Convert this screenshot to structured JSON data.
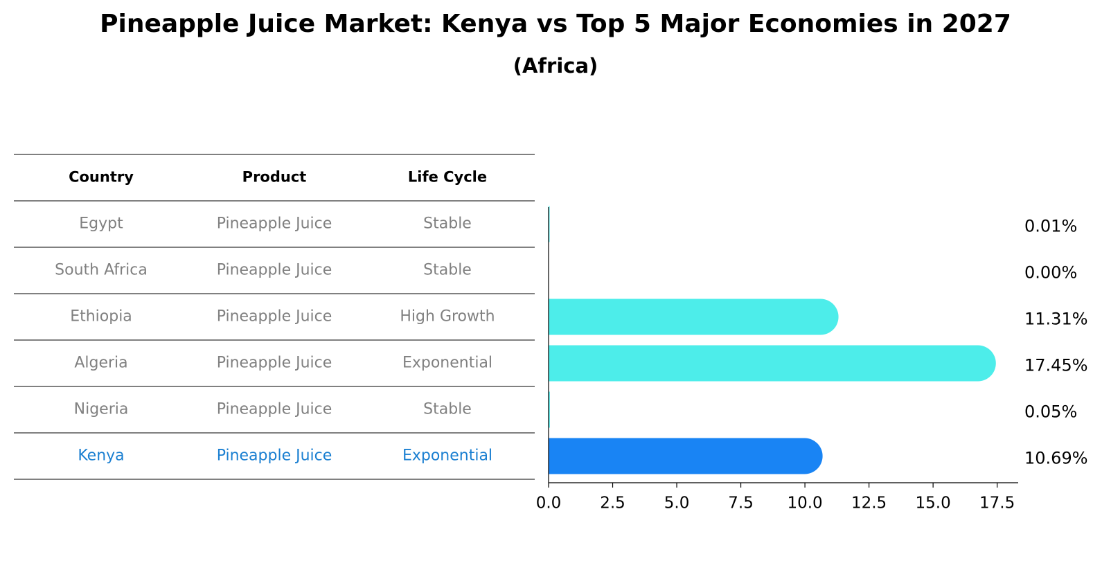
{
  "title": "Pineapple Juice Market: Kenya vs Top 5 Major Economies in 2027",
  "subtitle": "(Africa)",
  "colors": {
    "bar": "#4dedea",
    "highlight": "#1984f4",
    "muted_text": "#808080",
    "highlight_text": "#1a7fd1",
    "header_text": "#000000"
  },
  "table": {
    "columns": [
      "Country",
      "Product",
      "Life Cycle"
    ],
    "rows": [
      {
        "country": "Egypt",
        "product": "Pineapple Juice",
        "life_cycle": "Stable",
        "highlight": false
      },
      {
        "country": "South Africa",
        "product": "Pineapple Juice",
        "life_cycle": "Stable",
        "highlight": false
      },
      {
        "country": "Ethiopia",
        "product": "Pineapple Juice",
        "life_cycle": "High Growth",
        "highlight": false
      },
      {
        "country": "Algeria",
        "product": "Pineapple Juice",
        "life_cycle": "Exponential",
        "highlight": false
      },
      {
        "country": "Nigeria",
        "product": "Pineapple Juice",
        "life_cycle": "Stable",
        "highlight": false
      },
      {
        "country": "Kenya",
        "product": "Pineapple Juice",
        "life_cycle": "Exponential",
        "highlight": true
      }
    ]
  },
  "chart_data": {
    "type": "bar",
    "orientation": "horizontal",
    "categories": [
      "Egypt",
      "South Africa",
      "Ethiopia",
      "Algeria",
      "Nigeria",
      "Kenya"
    ],
    "values": [
      0.01,
      0.0,
      11.31,
      17.45,
      0.05,
      10.69
    ],
    "value_labels": [
      "0.01%",
      "0.00%",
      "11.31%",
      "17.45%",
      "0.05%",
      "10.69%"
    ],
    "highlight_category": "Kenya",
    "xlim": [
      0,
      18.32
    ],
    "xticks": [
      0.0,
      2.5,
      5.0,
      7.5,
      10.0,
      12.5,
      15.0,
      17.5
    ],
    "xtick_labels": [
      "0.0",
      "2.5",
      "5.0",
      "7.5",
      "10.0",
      "12.5",
      "15.0",
      "17.5"
    ],
    "title": "Pineapple Juice Market: Kenya vs Top 5 Major Economies in 2027",
    "subtitle": "(Africa)",
    "xlabel": "",
    "ylabel": "",
    "grid": false,
    "legend": "none"
  }
}
